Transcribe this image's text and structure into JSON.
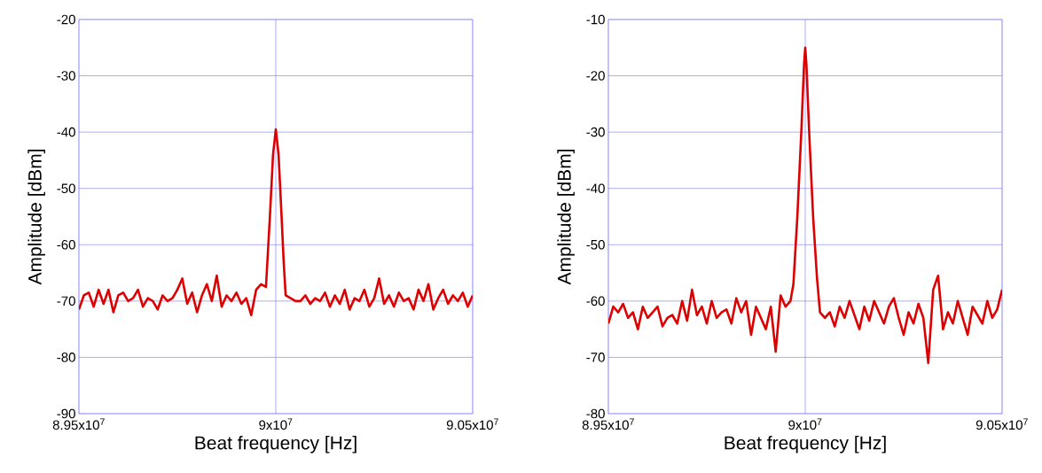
{
  "chart_data": [
    {
      "type": "line",
      "xlabel": "Beat frequency [Hz]",
      "ylabel": "Amplitude [dBm]",
      "color": "#dd0000",
      "grid": true,
      "line_style": "solid",
      "xlim": [
        89500000,
        90500000
      ],
      "ylim": [
        -90,
        -20
      ],
      "xticks": [
        {
          "value": 89500000,
          "label": "8.95x10$^{7}$"
        },
        {
          "value": 90000000,
          "label": "9x10$^{7}$"
        },
        {
          "value": 90500000,
          "label": "9.05x10$^{7}$"
        }
      ],
      "yticks": [
        -90,
        -80,
        -70,
        -60,
        -50,
        -40,
        -30,
        -20
      ],
      "x": [
        89500000,
        89512500,
        89525000,
        89537500,
        89550000,
        89562500,
        89575000,
        89587500,
        89600000,
        89612500,
        89625000,
        89637500,
        89650000,
        89662500,
        89675000,
        89687500,
        89700000,
        89712500,
        89725000,
        89737500,
        89750000,
        89762500,
        89775000,
        89787500,
        89800000,
        89812500,
        89825000,
        89837500,
        89850000,
        89862500,
        89875000,
        89887500,
        89900000,
        89912500,
        89925000,
        89937500,
        89950000,
        89962500,
        89975000,
        89985000,
        89993000,
        90000000,
        90007000,
        90014000,
        90020000,
        90025000,
        90037500,
        90050000,
        90062500,
        90075000,
        90087500,
        90100000,
        90112500,
        90125000,
        90137500,
        90150000,
        90162500,
        90175000,
        90187500,
        90200000,
        90212500,
        90225000,
        90237500,
        90250000,
        90262500,
        90275000,
        90287500,
        90300000,
        90312500,
        90325000,
        90337500,
        90350000,
        90362500,
        90375000,
        90387500,
        90400000,
        90412500,
        90425000,
        90437500,
        90450000,
        90462500,
        90475000,
        90487500,
        90500000
      ],
      "values": [
        -71.5,
        -69,
        -68.5,
        -71,
        -68,
        -70.5,
        -68,
        -72,
        -69,
        -68.5,
        -70,
        -69.5,
        -68,
        -71,
        -69.5,
        -70,
        -71.5,
        -69,
        -70,
        -69.5,
        -68,
        -66,
        -70.5,
        -68.5,
        -72,
        -69,
        -67,
        -70,
        -65.5,
        -71,
        -69,
        -70,
        -68.5,
        -70.5,
        -69.5,
        -72.5,
        -68,
        -67,
        -67.5,
        -55,
        -44,
        -39.5,
        -44,
        -54,
        -63,
        -69,
        -69.5,
        -70,
        -70,
        -69,
        -70.5,
        -69.5,
        -70,
        -68.5,
        -71,
        -69,
        -70.5,
        -68,
        -71.5,
        -69.5,
        -70,
        -68,
        -71,
        -69.5,
        -66,
        -70.5,
        -69,
        -71,
        -68.5,
        -70,
        -69.5,
        -71.5,
        -68,
        -70,
        -67,
        -71.5,
        -69.5,
        -68,
        -70.5,
        -69,
        -70,
        -68.5,
        -71,
        -69
      ]
    },
    {
      "type": "line",
      "xlabel": "Beat frequency [Hz]",
      "ylabel": "Amplitude [dBm]",
      "color": "#dd0000",
      "grid": true,
      "line_style": "solid",
      "xlim": [
        89500000,
        90500000
      ],
      "ylim": [
        -80,
        -10
      ],
      "xticks": [
        {
          "value": 89500000,
          "label": "8.95x10$^{7}$"
        },
        {
          "value": 90000000,
          "label": "9x10$^{7}$"
        },
        {
          "value": 90500000,
          "label": "9.05x10$^{7}$"
        }
      ],
      "yticks": [
        -80,
        -70,
        -60,
        -50,
        -40,
        -30,
        -20,
        -10
      ],
      "x": [
        89500000,
        89512500,
        89525000,
        89537500,
        89550000,
        89562500,
        89575000,
        89587500,
        89600000,
        89612500,
        89625000,
        89637500,
        89650000,
        89662500,
        89675000,
        89687500,
        89700000,
        89712500,
        89725000,
        89737500,
        89750000,
        89762500,
        89775000,
        89787500,
        89800000,
        89812500,
        89825000,
        89837500,
        89850000,
        89862500,
        89875000,
        89887500,
        89900000,
        89912500,
        89925000,
        89937500,
        89950000,
        89962500,
        89970000,
        89980000,
        89990000,
        89997000,
        90000000,
        90003000,
        90010000,
        90020000,
        90030000,
        90037500,
        90050000,
        90062500,
        90075000,
        90087500,
        90100000,
        90112500,
        90125000,
        90137500,
        90150000,
        90162500,
        90175000,
        90187500,
        90200000,
        90212500,
        90225000,
        90237500,
        90250000,
        90262500,
        90275000,
        90287500,
        90300000,
        90312500,
        90325000,
        90337500,
        90350000,
        90362500,
        90375000,
        90387500,
        90400000,
        90412500,
        90425000,
        90437500,
        90450000,
        90462500,
        90475000,
        90487500,
        90500000
      ],
      "values": [
        -64,
        -61,
        -62,
        -60.5,
        -63,
        -62,
        -65,
        -61,
        -63,
        -62,
        -61,
        -64.5,
        -63,
        -62.5,
        -64,
        -60,
        -63.5,
        -58,
        -62.5,
        -61,
        -64,
        -60,
        -63,
        -62,
        -61.5,
        -64,
        -59.5,
        -62,
        -60,
        -66,
        -61,
        -63,
        -65,
        -61,
        -69,
        -59,
        -61,
        -60,
        -57,
        -45,
        -30,
        -18,
        -15,
        -18,
        -30,
        -45,
        -56,
        -62,
        -63,
        -62,
        -64.5,
        -61,
        -63,
        -60,
        -62.5,
        -65,
        -61,
        -63.5,
        -60,
        -62,
        -64,
        -61,
        -59.5,
        -63,
        -66,
        -62,
        -64,
        -60.5,
        -63,
        -71,
        -58,
        -55.5,
        -65,
        -62,
        -64,
        -60,
        -63,
        -66,
        -61,
        -62.5,
        -64,
        -60,
        -63,
        -61.5,
        -58
      ]
    }
  ]
}
